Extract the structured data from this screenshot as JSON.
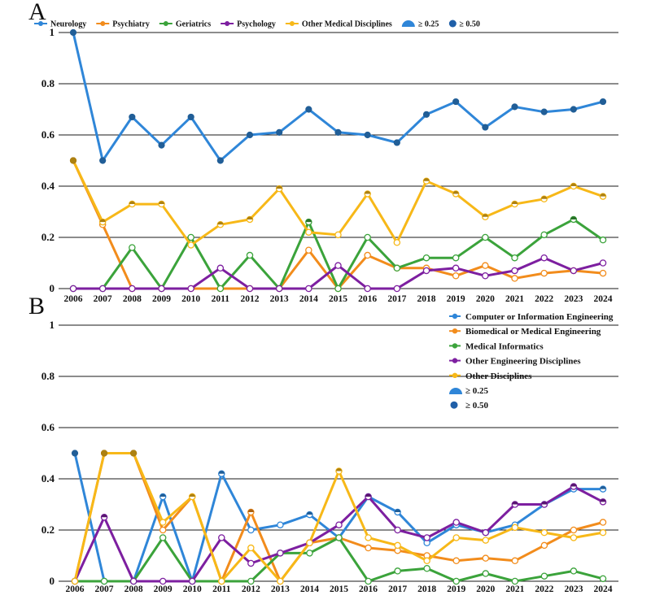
{
  "panels": [
    {
      "letter": "A",
      "chart_data": {
        "type": "line",
        "title": "",
        "xlabel": "",
        "ylabel": "",
        "ylim": [
          0,
          1
        ],
        "grid": true,
        "legend_position": "top",
        "categories": [
          "2006",
          "2007",
          "2008",
          "2009",
          "2010",
          "2011",
          "2012",
          "2013",
          "2014",
          "2015",
          "2016",
          "2017",
          "2018",
          "2019",
          "2020",
          "2021",
          "2022",
          "2023",
          "2024"
        ],
        "y_ticks": [
          {
            "value": 0,
            "label": "0"
          },
          {
            "value": 0.2,
            "label": "0.2"
          },
          {
            "value": 0.4,
            "label": "0.4"
          },
          {
            "value": 0.6,
            "label": "0.6"
          },
          {
            "value": 0.8,
            "label": "0.8"
          },
          {
            "value": 1,
            "label": "1"
          }
        ],
        "series": [
          {
            "name": "Neurology",
            "color": "#2f86d8",
            "values": [
              1.0,
              0.5,
              0.67,
              0.56,
              0.67,
              0.5,
              0.6,
              0.61,
              0.7,
              0.61,
              0.6,
              0.57,
              0.68,
              0.73,
              0.63,
              0.71,
              0.69,
              0.7,
              0.73
            ]
          },
          {
            "name": "Psychiatry",
            "color": "#f28c1c",
            "values": [
              0.5,
              0.25,
              0.0,
              0.0,
              0.0,
              0.0,
              0.0,
              0.0,
              0.15,
              0.0,
              0.13,
              0.08,
              0.08,
              0.05,
              0.09,
              0.04,
              0.06,
              0.07,
              0.06
            ]
          },
          {
            "name": "Geriatrics",
            "color": "#3ba33b",
            "values": [
              0.0,
              0.0,
              0.16,
              0.0,
              0.2,
              0.0,
              0.13,
              0.0,
              0.26,
              0.0,
              0.2,
              0.08,
              0.12,
              0.12,
              0.2,
              0.12,
              0.21,
              0.27,
              0.19
            ]
          },
          {
            "name": "Psychology",
            "color": "#7d1fa0",
            "values": [
              0.0,
              0.0,
              0.0,
              0.0,
              0.0,
              0.08,
              0.0,
              0.0,
              0.0,
              0.09,
              0.0,
              0.0,
              0.07,
              0.08,
              0.05,
              0.07,
              0.12,
              0.07,
              0.1
            ]
          },
          {
            "name": "Other Medical Disciplines",
            "color": "#f7b818",
            "values": [
              0.5,
              0.26,
              0.33,
              0.33,
              0.17,
              0.25,
              0.27,
              0.39,
              0.22,
              0.21,
              0.37,
              0.18,
              0.42,
              0.37,
              0.28,
              0.33,
              0.35,
              0.4,
              0.36
            ]
          }
        ],
        "marker_legend": [
          {
            "label": "≥ 0.25",
            "shape": "half-filled",
            "color": "#2f86d8"
          },
          {
            "label": "≥ 0.50",
            "shape": "filled",
            "color": "#1f5fa8"
          }
        ]
      }
    },
    {
      "letter": "B",
      "chart_data": {
        "type": "line",
        "title": "",
        "xlabel": "",
        "ylabel": "",
        "ylim": [
          0,
          1
        ],
        "grid": true,
        "legend_position": "top-right",
        "categories": [
          "2006",
          "2007",
          "2008",
          "2009",
          "2010",
          "2011",
          "2012",
          "2013",
          "2014",
          "2015",
          "2016",
          "2017",
          "2018",
          "2019",
          "2020",
          "2021",
          "2022",
          "2023",
          "2024"
        ],
        "y_ticks": [
          {
            "value": 0,
            "label": "0"
          },
          {
            "value": 0.2,
            "label": "0.2"
          },
          {
            "value": 0.4,
            "label": "0.4"
          },
          {
            "value": 0.6,
            "label": "0.6"
          },
          {
            "value": 0.8,
            "label": "0.8"
          },
          {
            "value": 1,
            "label": "1"
          }
        ],
        "series": [
          {
            "name": "Computer or Information Engineering",
            "color": "#2f86d8",
            "values": [
              0.5,
              0.0,
              0.0,
              0.33,
              0.0,
              0.42,
              0.2,
              0.22,
              0.26,
              0.17,
              0.33,
              0.27,
              0.15,
              0.22,
              0.19,
              0.22,
              0.3,
              0.36,
              0.36
            ]
          },
          {
            "name": "Biomedical or Medical Engineering",
            "color": "#f28c1c",
            "values": [
              0.0,
              0.5,
              0.5,
              0.2,
              0.33,
              0.0,
              0.27,
              0.0,
              0.15,
              0.17,
              0.13,
              0.12,
              0.1,
              0.08,
              0.09,
              0.08,
              0.14,
              0.2,
              0.23
            ]
          },
          {
            "name": "Medical Informatics",
            "color": "#3ba33b",
            "values": [
              0.0,
              0.0,
              0.0,
              0.17,
              0.0,
              0.0,
              0.0,
              0.11,
              0.11,
              0.17,
              0.0,
              0.04,
              0.05,
              0.0,
              0.03,
              0.0,
              0.02,
              0.04,
              0.01
            ]
          },
          {
            "name": "Other Engineering Disciplines",
            "color": "#7d1fa0",
            "values": [
              0.0,
              0.25,
              0.0,
              0.0,
              0.0,
              0.17,
              0.07,
              0.11,
              0.15,
              0.22,
              0.33,
              0.2,
              0.17,
              0.23,
              0.19,
              0.3,
              0.3,
              0.37,
              0.31
            ]
          },
          {
            "name": "Other Disciplines",
            "color": "#f7b818",
            "values": [
              0.0,
              0.5,
              0.5,
              0.23,
              0.33,
              0.0,
              0.13,
              0.0,
              0.15,
              0.43,
              0.17,
              0.14,
              0.08,
              0.17,
              0.16,
              0.21,
              0.19,
              0.17,
              0.19
            ]
          }
        ],
        "marker_legend": [
          {
            "label": "≥ 0.25",
            "shape": "half-filled",
            "color": "#2f86d8"
          },
          {
            "label": "≥ 0.50",
            "shape": "filled",
            "color": "#1f5fa8"
          }
        ]
      }
    }
  ]
}
